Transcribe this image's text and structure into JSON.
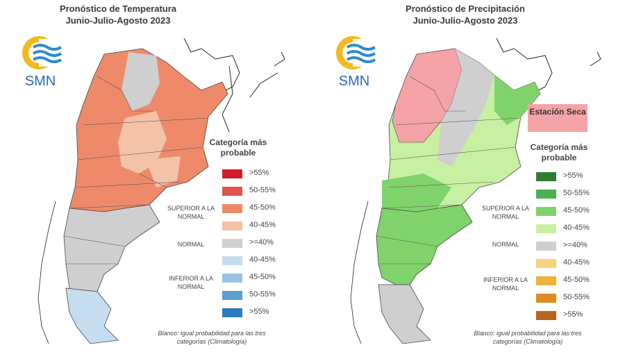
{
  "temperature": {
    "title": "Pronóstico de Temperatura",
    "subtitle": "Junio-Julio-Agosto 2023",
    "logo_text": "SMN",
    "legend_title": "Categoría más probable",
    "groups": [
      "SUPERIOR A LA NORMAL",
      "NORMAL",
      "INFERIOR A LA NORMAL"
    ],
    "legend": [
      {
        "label": ">55%",
        "color": "#d01c2a"
      },
      {
        "label": "50-55%",
        "color": "#e0534f"
      },
      {
        "label": "45-50%",
        "color": "#ee8a6a"
      },
      {
        "label": "40-45%",
        "color": "#f4c2a8"
      },
      {
        "label": ">=40%",
        "color": "#cfcfcf"
      },
      {
        "label": "40-45%",
        "color": "#c6dcef"
      },
      {
        "label": "45-50%",
        "color": "#9ac3e3"
      },
      {
        "label": "50-55%",
        "color": "#5a9fd0"
      },
      {
        "label": ">55%",
        "color": "#2b7bbf"
      }
    ],
    "note": "Blanco: igual probabilidad para las tres categorías (Climatología)"
  },
  "precipitation": {
    "title": "Pronóstico de Precipitación",
    "subtitle": "Junio-Julio-Agosto 2023",
    "logo_text": "SMN",
    "badge": "Estación Seca",
    "legend_title": "Categoría más probable",
    "groups": [
      "SUPERIOR A LA NORMAL",
      "NORMAL",
      "INFERIOR A LA NORMAL"
    ],
    "legend": [
      {
        "label": ">55%",
        "color": "#2e7d32"
      },
      {
        "label": "50-55%",
        "color": "#4caf50"
      },
      {
        "label": "45-50%",
        "color": "#7fd36a"
      },
      {
        "label": "40-45%",
        "color": "#c8f0a2"
      },
      {
        "label": ">=40%",
        "color": "#cfcfcf"
      },
      {
        "label": "40-45%",
        "color": "#f7d37f"
      },
      {
        "label": "45-50%",
        "color": "#ecb33b"
      },
      {
        "label": "50-55%",
        "color": "#e08a22"
      },
      {
        "label": ">55%",
        "color": "#b5651d"
      }
    ],
    "note": "Blanco: igual probabilidad para las tres categorías (Climatología)"
  }
}
